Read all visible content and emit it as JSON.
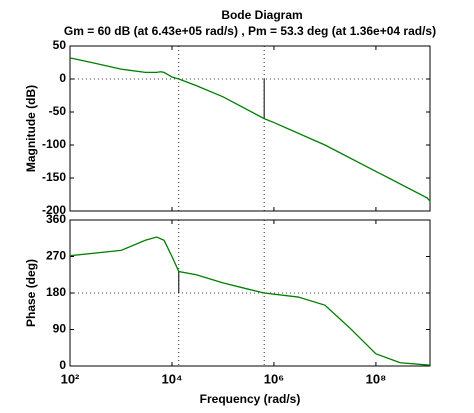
{
  "chart_data": [
    {
      "type": "line",
      "title": "Bode Diagram",
      "subtitle": "Gm = 60 dB (at 6.43e+05 rad/s) ,  Pm = 53.3 deg (at 1.36e+04 rad/s)",
      "ylabel": "Magnitude (dB)",
      "log_x": true,
      "xlim": [
        100,
        1150000000
      ],
      "xticks": [
        100,
        10000,
        1000000,
        100000000
      ],
      "ylim": [
        -200,
        50
      ],
      "yticks": [
        -200,
        -150,
        -100,
        -50,
        0,
        50
      ],
      "hline": 0,
      "vlines": [
        13600,
        643000
      ],
      "margin_segment": {
        "x": 643000,
        "from": 0,
        "to": -60
      },
      "x": [
        100,
        300,
        1000,
        3000,
        5000,
        6000,
        7000,
        10000,
        13600,
        30000,
        100000,
        643000,
        1000000,
        10000000,
        100000000,
        1000000000,
        1150000000
      ],
      "series": [
        {
          "color": "#007f00",
          "values": [
            32,
            24,
            15,
            10,
            10,
            11,
            10,
            3,
            0,
            -10,
            -27,
            -60,
            -66,
            -100,
            -140,
            -180,
            -185
          ]
        }
      ]
    },
    {
      "type": "line",
      "ylabel": "Phase (deg)",
      "xlabel": "Frequency  (rad/s)",
      "log_x": true,
      "xlim": [
        100,
        1150000000
      ],
      "xticks": [
        {
          "value": 100,
          "label": "10²"
        },
        {
          "value": 10000,
          "label": "10⁴"
        },
        {
          "value": 1000000,
          "label": "10⁶"
        },
        {
          "value": 100000000,
          "label": "10⁸"
        }
      ],
      "ylim": [
        0,
        360
      ],
      "yticks": [
        0,
        90,
        180,
        270,
        360
      ],
      "hline": 180,
      "vlines": [
        13600,
        643000
      ],
      "margin_segment": {
        "x": 13600,
        "from": 180,
        "to": 233.3
      },
      "x": [
        100,
        1000,
        3000,
        5000,
        7000,
        10000,
        13600,
        30000,
        100000,
        300000,
        643000,
        3000000,
        10000000,
        30000000,
        100000000,
        300000000,
        1150000000
      ],
      "series": [
        {
          "color": "#007f00",
          "values": [
            272,
            285,
            310,
            318,
            310,
            270,
            233,
            225,
            205,
            190,
            180,
            170,
            150,
            95,
            30,
            8,
            2
          ]
        }
      ]
    }
  ]
}
